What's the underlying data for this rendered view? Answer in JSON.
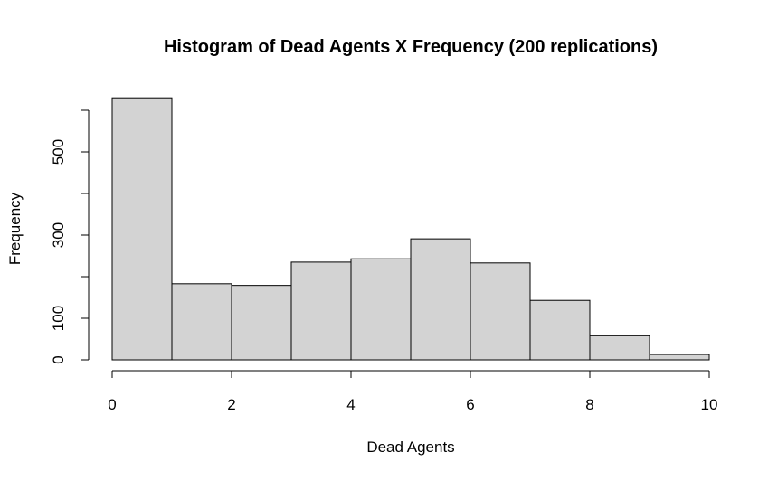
{
  "chart_data": {
    "type": "bar",
    "title": "Histogram of Dead Agents X Frequency (200 replications)",
    "xlabel": "Dead Agents",
    "ylabel": "Frequency",
    "bins": [
      {
        "x0": 0,
        "x1": 1,
        "value": 630
      },
      {
        "x0": 1,
        "x1": 2,
        "value": 183
      },
      {
        "x0": 2,
        "x1": 3,
        "value": 179
      },
      {
        "x0": 3,
        "x1": 4,
        "value": 235
      },
      {
        "x0": 4,
        "x1": 5,
        "value": 243
      },
      {
        "x0": 5,
        "x1": 6,
        "value": 291
      },
      {
        "x0": 6,
        "x1": 7,
        "value": 233
      },
      {
        "x0": 7,
        "x1": 8,
        "value": 143
      },
      {
        "x0": 8,
        "x1": 9,
        "value": 58
      },
      {
        "x0": 9,
        "x1": 10,
        "value": 13
      }
    ],
    "xlim": [
      0,
      10
    ],
    "ylim": [
      0,
      600
    ],
    "xticks": [
      0,
      2,
      4,
      6,
      8,
      10
    ],
    "yticks": [
      0,
      100,
      200,
      300,
      400,
      500,
      600
    ],
    "ytick_labels": [
      "0",
      "100",
      "",
      "300",
      "",
      "500",
      ""
    ],
    "bar_color": "#d3d3d3",
    "edge_color": "#000000",
    "grid": false,
    "legend": "none"
  }
}
